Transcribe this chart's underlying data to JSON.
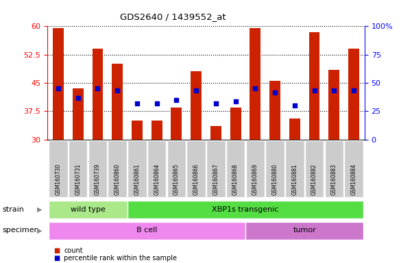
{
  "title": "GDS2640 / 1439552_at",
  "samples": [
    "GSM160730",
    "GSM160731",
    "GSM160739",
    "GSM160860",
    "GSM160861",
    "GSM160864",
    "GSM160865",
    "GSM160866",
    "GSM160867",
    "GSM160868",
    "GSM160869",
    "GSM160880",
    "GSM160881",
    "GSM160882",
    "GSM160883",
    "GSM160884"
  ],
  "counts": [
    59.5,
    43.5,
    54.0,
    50.0,
    35.0,
    35.0,
    38.5,
    48.0,
    33.5,
    38.5,
    59.5,
    45.5,
    35.5,
    58.5,
    48.5,
    54.0
  ],
  "percentile_left_axis": [
    43.5,
    41.0,
    43.5,
    43.0,
    39.5,
    39.5,
    40.5,
    43.0,
    39.5,
    40.0,
    43.5,
    42.5,
    39.0,
    43.0,
    43.0,
    43.0
  ],
  "ymin": 30,
  "ymax": 60,
  "yticks": [
    30,
    37.5,
    45,
    52.5,
    60
  ],
  "ytick_labels": [
    "30",
    "37.5",
    "45",
    "52.5",
    "60"
  ],
  "right_yticks": [
    0,
    25,
    50,
    75,
    100
  ],
  "right_ytick_labels": [
    "0",
    "25",
    "50",
    "75",
    "100%"
  ],
  "bar_color": "#cc2200",
  "dot_color": "#0000cc",
  "bar_bottom": 30,
  "strain_groups": [
    {
      "label": "wild type",
      "start": 0,
      "end": 4,
      "color": "#aae88a"
    },
    {
      "label": "XBP1s transgenic",
      "start": 4,
      "end": 16,
      "color": "#55dd44"
    }
  ],
  "specimen_groups": [
    {
      "label": "B cell",
      "start": 0,
      "end": 10,
      "color": "#ee88ee"
    },
    {
      "label": "tumor",
      "start": 10,
      "end": 16,
      "color": "#cc77cc"
    }
  ],
  "legend_items": [
    {
      "label": "count",
      "color": "#cc2200"
    },
    {
      "label": "percentile rank within the sample",
      "color": "#0000cc"
    }
  ],
  "tick_bg_color": "#cccccc",
  "left_label_color": "#888888"
}
